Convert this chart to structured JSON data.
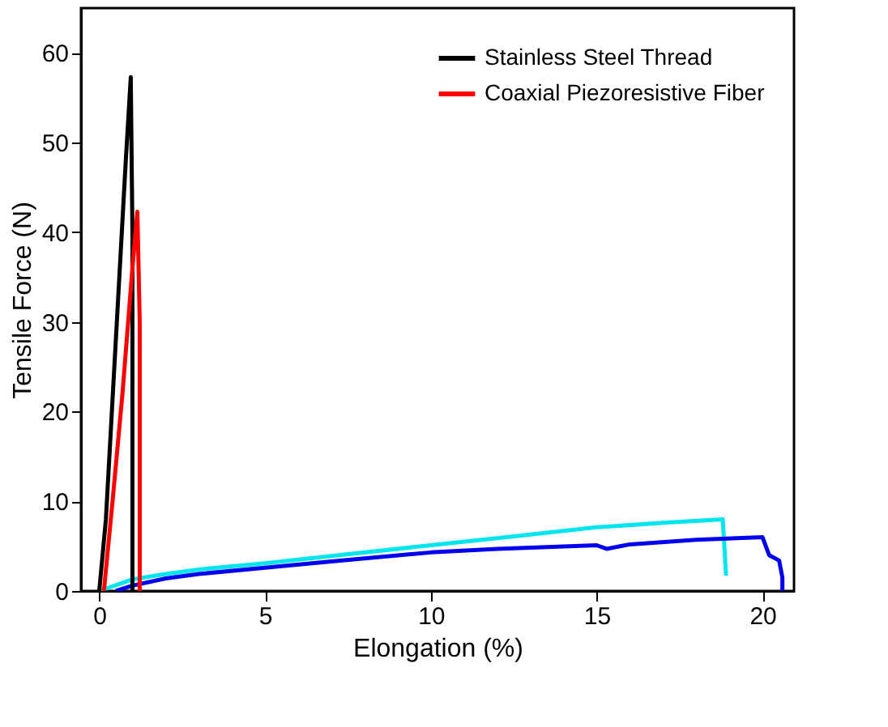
{
  "chart_data": {
    "type": "line",
    "xlabel": "Elongation (%)",
    "ylabel": "Tensile Force (N)",
    "xlim": [
      -0.55,
      20.95
    ],
    "ylim": [
      0,
      65
    ],
    "xticks": [
      0,
      5,
      10,
      15,
      20
    ],
    "yticks": [
      0,
      10,
      20,
      30,
      40,
      50,
      60
    ],
    "grid": false,
    "legend": "top right",
    "line_style": "solid",
    "marker": "none",
    "series": [
      {
        "color": "#00e5ee",
        "x": [
          0,
          1,
          2,
          3,
          5,
          7,
          10,
          12,
          15,
          17,
          18.8,
          18.85,
          18.9
        ],
        "values": [
          0,
          1.3,
          1.9,
          2.4,
          3.1,
          3.9,
          5.1,
          5.9,
          7.1,
          7.6,
          8.0,
          5,
          1.7
        ]
      },
      {
        "color": "#0000ee",
        "x": [
          0.5,
          1,
          2,
          3,
          5,
          7,
          10,
          12,
          15,
          15.3,
          16,
          18,
          20,
          20.2,
          20.5,
          20.6,
          20.6
        ],
        "values": [
          0,
          0.6,
          1.4,
          1.9,
          2.6,
          3.3,
          4.3,
          4.7,
          5.1,
          4.7,
          5.2,
          5.7,
          6.0,
          4.0,
          3.4,
          1.5,
          0
        ]
      },
      {
        "name": "Stainless Steel Thread",
        "color": "#000000",
        "x": [
          0,
          0.2,
          0.5,
          0.8,
          0.95,
          1.0,
          1.0
        ],
        "values": [
          0,
          8,
          28,
          48,
          57.3,
          40,
          0
        ]
      },
      {
        "name": "Coaxial Piezoresistive Fiber",
        "color": "#ff0000",
        "x": [
          0.14,
          0.4,
          0.7,
          1.0,
          1.15,
          1.22,
          1.22
        ],
        "values": [
          0,
          10,
          22,
          36,
          42.3,
          30,
          0
        ]
      }
    ]
  }
}
